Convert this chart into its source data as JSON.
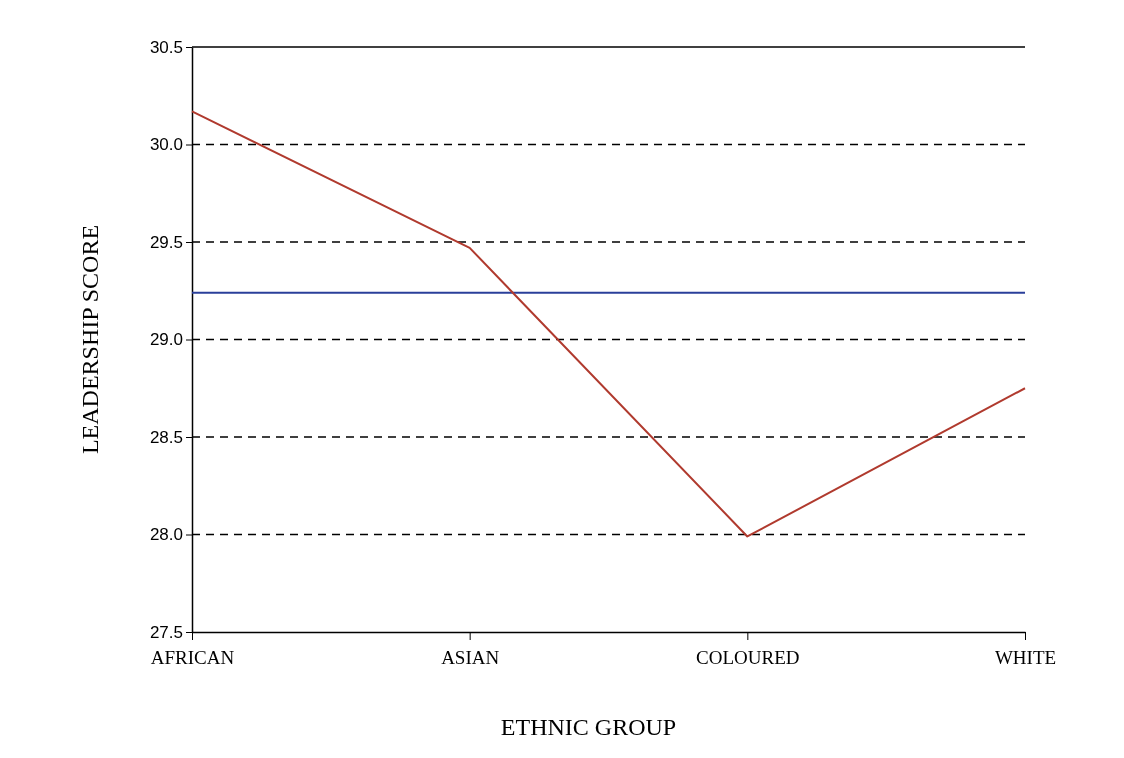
{
  "chart_data": {
    "type": "line",
    "xlabel": "ETHNIC GROUP",
    "ylabel": "LEADERSHIP SCORE",
    "categories": [
      "AFRICAN",
      "ASIAN",
      "COLOURED",
      "WHITE"
    ],
    "series": [
      {
        "color": "#b03a2e",
        "values": [
          30.17,
          29.47,
          27.99,
          28.75
        ]
      }
    ],
    "ylim": [
      27.5,
      30.5
    ],
    "yticks": [
      {
        "value": 27.5,
        "label": "27.5"
      },
      {
        "value": 28,
        "label": "28.0"
      },
      {
        "value": 28.5,
        "label": "28.5"
      },
      {
        "value": 29,
        "label": "29.0"
      },
      {
        "value": 29.5,
        "label": "29.5"
      },
      {
        "value": 30,
        "label": "30.0"
      },
      {
        "value": 30.5,
        "label": "30.5"
      }
    ],
    "ref_lines": [
      {
        "axis": "y",
        "value": 29.24,
        "color": "#2a3f9a",
        "line_style": "solid"
      }
    ],
    "grid": "y",
    "line_style": "solid",
    "marker": "none"
  }
}
